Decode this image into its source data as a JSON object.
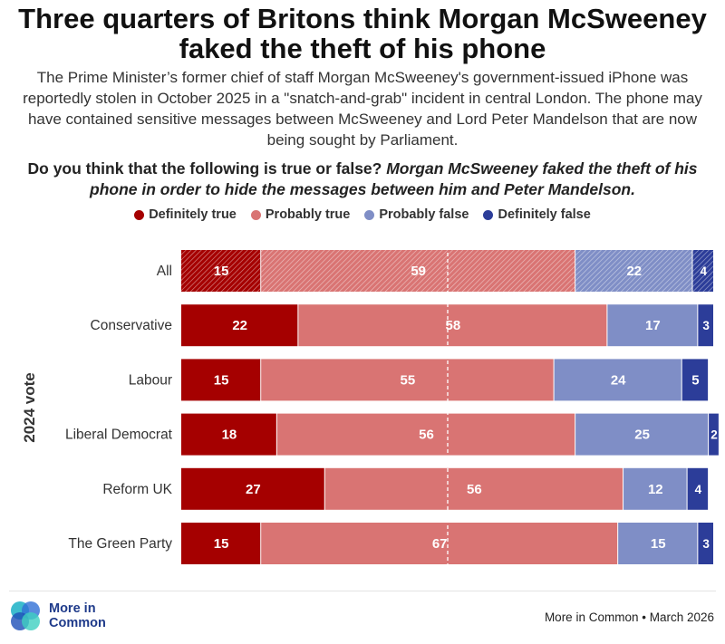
{
  "title": "Three quarters of Britons think Morgan McSweeney faked the theft of his phone",
  "subtitle": "The Prime Minister’s former chief of staff Morgan McSweeney's government-issued iPhone was reportedly stolen in October 2025 in a \"snatch-and-grab\" incident in central London. The phone may have contained sensitive messages between McSweeney and Lord Peter Mandelson that are now being sought by Parliament.",
  "question": {
    "plain": "Do you think that the following is true or false?",
    "statement": "Morgan McSweeney faked the theft of his phone in order to hide the messages between him and Peter Mandelson."
  },
  "colors": {
    "definitely_true": "#a50000",
    "probably_true": "#d97473",
    "probably_false": "#7f8ec6",
    "definitely_false": "#2c3d99"
  },
  "logo": {
    "line1": "More in",
    "line2": "Common"
  },
  "source": "More in Common • March 2026",
  "chart_data": {
    "type": "bar",
    "orientation": "horizontal",
    "stacked": true,
    "xlim": [
      0,
      100
    ],
    "reference_line": 50,
    "ylabel": "2024 vote",
    "categories": [
      "All",
      "Conservative",
      "Labour",
      "Liberal Democrat",
      "Reform UK",
      "The Green Party"
    ],
    "highlighted_category": "All",
    "series": [
      {
        "name": "Definitely true",
        "values": [
          15,
          22,
          15,
          18,
          27,
          15
        ]
      },
      {
        "name": "Probably true",
        "values": [
          59,
          58,
          55,
          56,
          56,
          67
        ]
      },
      {
        "name": "Probably false",
        "values": [
          22,
          17,
          24,
          25,
          12,
          15
        ]
      },
      {
        "name": "Definitely false",
        "values": [
          4,
          3,
          5,
          2,
          4,
          3
        ]
      }
    ]
  }
}
